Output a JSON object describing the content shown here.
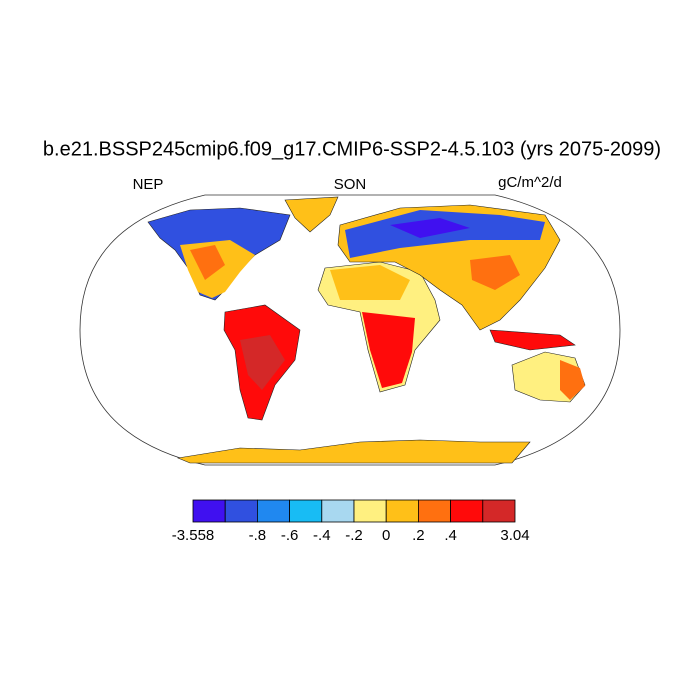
{
  "title": "b.e21.BSSP245cmip6.f09_g17.CMIP6-SSP2-4.5.103 (yrs 2075-2099)",
  "subtitles": {
    "left": "NEP",
    "center": "SON",
    "right": "gC/m^2/d"
  },
  "colorbar": {
    "colors": [
      "#4010f0",
      "#3050e0",
      "#2088f0",
      "#18bcf4",
      "#a8d8f0",
      "#fff080",
      "#ffc018",
      "#ff7010",
      "#ff0a0a",
      "#d42828"
    ],
    "labels": [
      "-3.558",
      "-.8",
      "-.6",
      "-.4",
      "-.2",
      "0",
      ".2",
      ".4",
      "3.04"
    ]
  }
}
